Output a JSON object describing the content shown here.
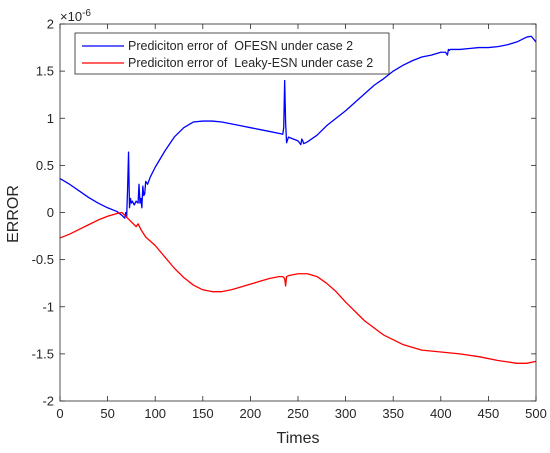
{
  "chart_data": {
    "type": "line",
    "title": "",
    "xlabel": "Times",
    "ylabel": "ERROR",
    "y_exponent_label": "×10",
    "y_exponent_power": "-6",
    "y_scale": 1e-06,
    "xlim": [
      0,
      500
    ],
    "ylim": [
      -2,
      2
    ],
    "x_ticks": [
      0,
      50,
      100,
      150,
      200,
      250,
      300,
      350,
      400,
      450,
      500
    ],
    "y_ticks": [
      -2,
      -1.5,
      -1,
      -0.5,
      0,
      0.5,
      1,
      1.5,
      2
    ],
    "y_tick_labels": [
      "-2",
      "-1.5",
      "-1",
      "-0.5",
      "0",
      "0.5",
      "1",
      "1.5",
      "2"
    ],
    "grid": false,
    "legend_position": "top-left",
    "series": [
      {
        "name": "Prediciton error of  OFESN under case 2",
        "color": "#0000ff",
        "x": [
          0,
          10,
          20,
          30,
          40,
          50,
          60,
          65,
          68,
          69,
          70,
          71,
          72,
          73,
          74,
          75,
          76,
          78,
          80,
          82,
          83,
          84,
          85,
          86,
          87,
          88,
          89,
          90,
          92,
          95,
          100,
          110,
          120,
          130,
          140,
          150,
          160,
          170,
          180,
          190,
          200,
          210,
          220,
          230,
          234,
          235,
          236,
          237,
          238,
          240,
          245,
          250,
          253,
          254,
          255,
          256,
          260,
          270,
          280,
          290,
          300,
          310,
          320,
          330,
          340,
          350,
          360,
          370,
          380,
          390,
          400,
          405,
          407,
          408,
          409,
          410,
          420,
          430,
          440,
          450,
          460,
          470,
          480,
          490,
          495,
          500
        ],
        "values": [
          0.36,
          0.3,
          0.23,
          0.16,
          0.1,
          0.05,
          0.01,
          -0.03,
          -0.06,
          0.0,
          -0.05,
          0.25,
          0.64,
          0.05,
          0.15,
          0.1,
          0.12,
          0.08,
          0.12,
          0.1,
          0.3,
          0.1,
          0.15,
          0.05,
          0.28,
          0.18,
          0.2,
          0.33,
          0.3,
          0.38,
          0.48,
          0.65,
          0.8,
          0.9,
          0.96,
          0.97,
          0.97,
          0.96,
          0.94,
          0.92,
          0.9,
          0.88,
          0.86,
          0.84,
          0.83,
          0.9,
          1.4,
          0.95,
          0.74,
          0.8,
          0.78,
          0.76,
          0.72,
          0.78,
          0.76,
          0.73,
          0.75,
          0.82,
          0.92,
          1.0,
          1.08,
          1.17,
          1.26,
          1.35,
          1.42,
          1.5,
          1.56,
          1.61,
          1.65,
          1.67,
          1.7,
          1.7,
          1.67,
          1.73,
          1.72,
          1.73,
          1.73,
          1.74,
          1.75,
          1.75,
          1.76,
          1.78,
          1.81,
          1.86,
          1.87,
          1.81
        ]
      },
      {
        "name": "Prediciton error of  Leaky-ESN under case 2",
        "color": "#ff0000",
        "x": [
          0,
          10,
          20,
          30,
          40,
          50,
          60,
          65,
          70,
          75,
          80,
          82,
          85,
          90,
          100,
          110,
          120,
          130,
          140,
          150,
          160,
          170,
          180,
          190,
          200,
          210,
          220,
          230,
          234,
          236,
          237,
          238,
          240,
          250,
          260,
          270,
          280,
          290,
          300,
          320,
          340,
          360,
          380,
          400,
          420,
          440,
          460,
          480,
          490,
          500
        ],
        "values": [
          -0.27,
          -0.23,
          -0.18,
          -0.13,
          -0.08,
          -0.04,
          -0.01,
          0.0,
          -0.05,
          -0.1,
          -0.15,
          -0.12,
          -0.18,
          -0.26,
          -0.35,
          -0.47,
          -0.59,
          -0.69,
          -0.77,
          -0.82,
          -0.84,
          -0.84,
          -0.82,
          -0.79,
          -0.76,
          -0.73,
          -0.7,
          -0.68,
          -0.68,
          -0.7,
          -0.78,
          -0.68,
          -0.67,
          -0.65,
          -0.65,
          -0.68,
          -0.75,
          -0.84,
          -0.95,
          -1.15,
          -1.3,
          -1.4,
          -1.46,
          -1.48,
          -1.5,
          -1.53,
          -1.57,
          -1.6,
          -1.6,
          -1.58
        ]
      }
    ]
  }
}
